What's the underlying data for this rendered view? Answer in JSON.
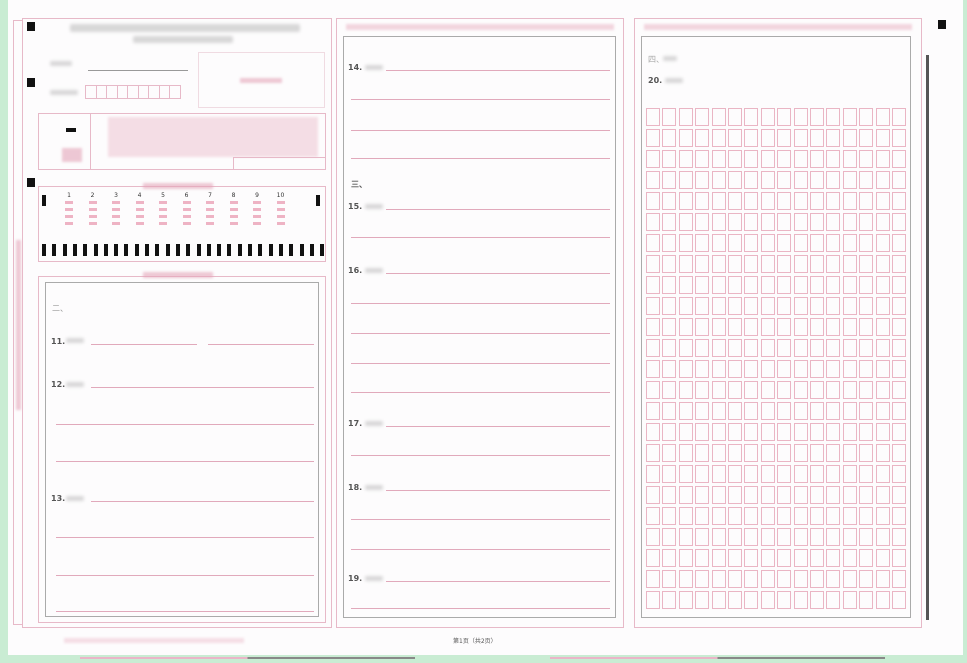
{
  "choice_numbers": [
    "1",
    "2",
    "3",
    "4",
    "5",
    "6",
    "7",
    "8",
    "9",
    "10"
  ],
  "questions": {
    "q11": "11.",
    "q12": "12.",
    "q13": "13.",
    "q14": "14.",
    "q15": "15.",
    "q16": "16.",
    "q17": "17.",
    "q18": "18.",
    "q19": "19.",
    "q20": "20."
  },
  "sections": {
    "part2_marker": "二、",
    "part3_marker": "三、",
    "part4_marker": "四、"
  },
  "footer": {
    "page_number": "第1页（共2页）"
  },
  "colors": {
    "accent_pink": "#e1a9bb",
    "frame_grey": "#aaaaaa",
    "background_green": "#c9ecd3"
  }
}
